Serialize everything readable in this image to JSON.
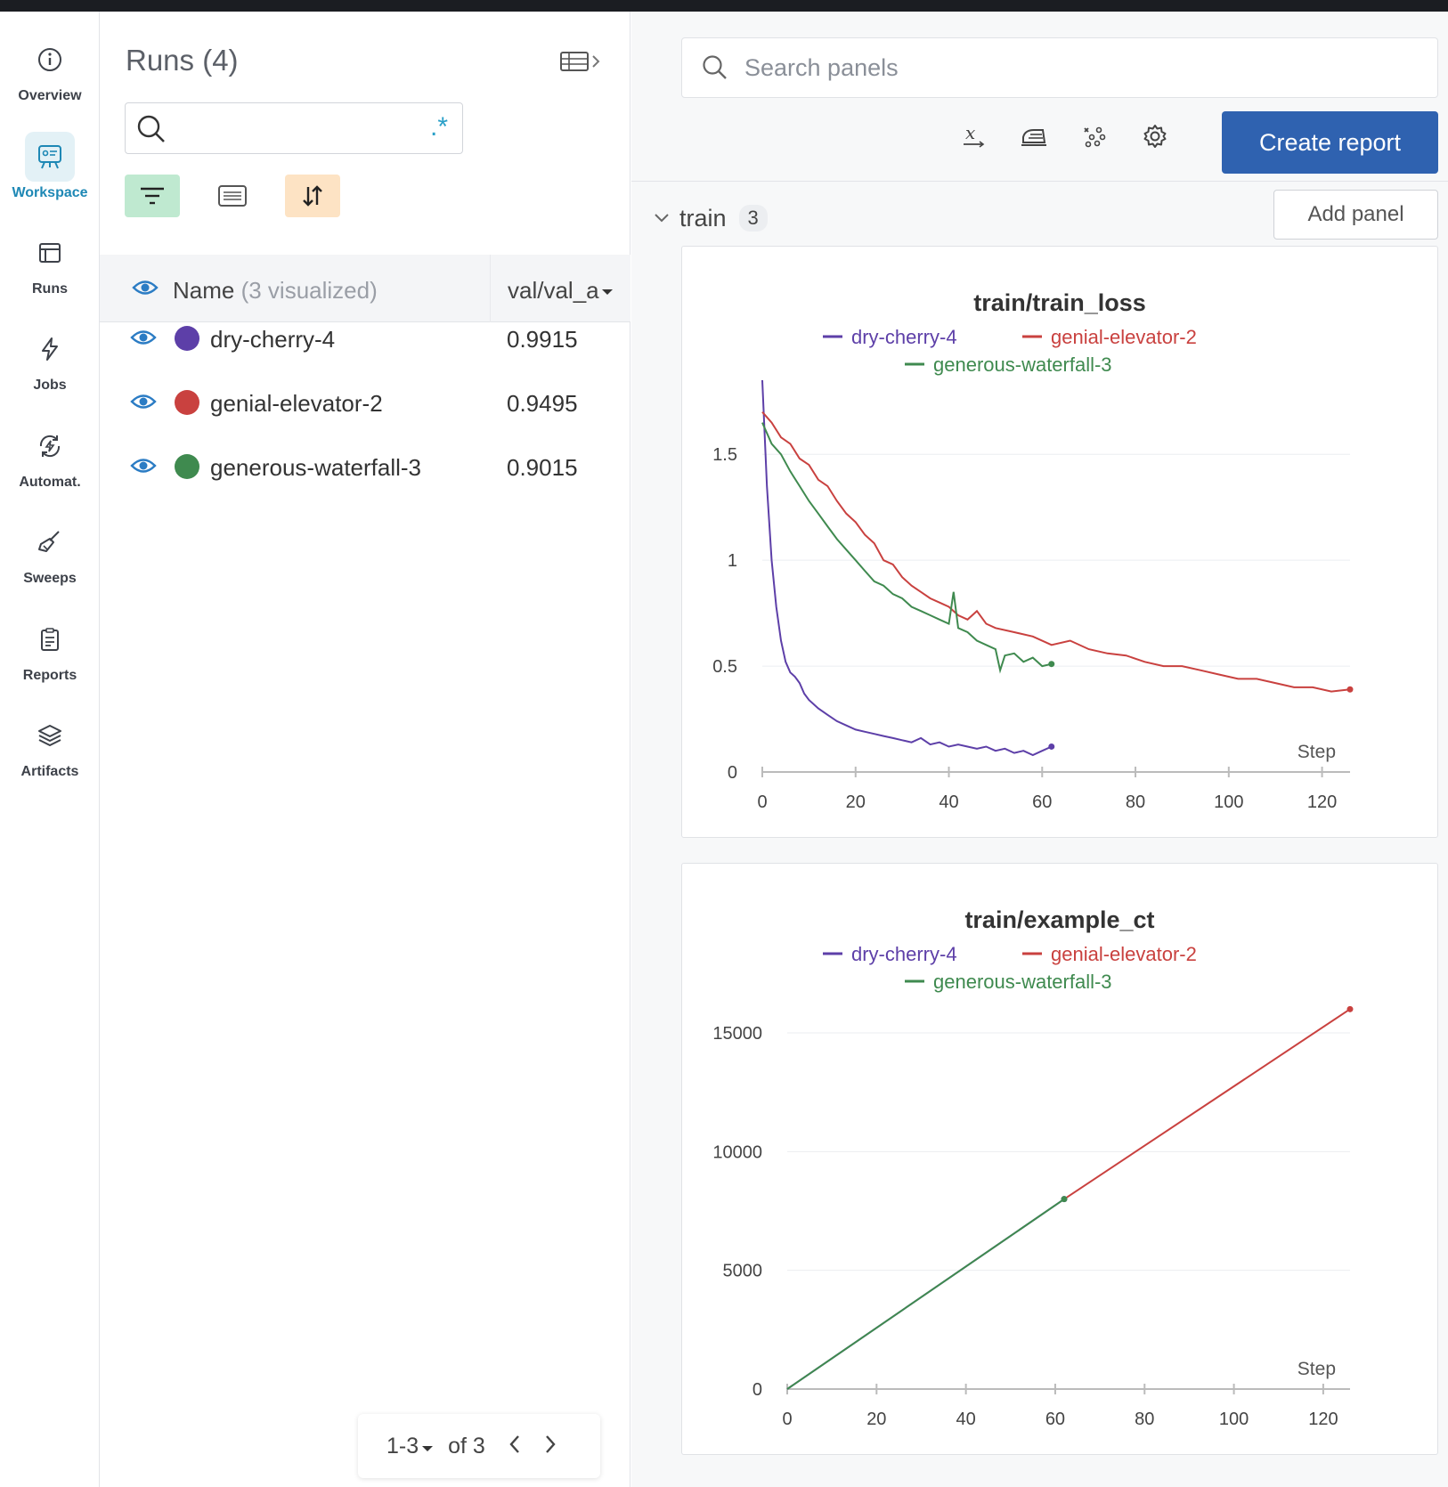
{
  "nav": {
    "items": [
      {
        "label": "Overview",
        "icon": "info-icon"
      },
      {
        "label": "Workspace",
        "icon": "workspace-icon",
        "active": true
      },
      {
        "label": "Runs",
        "icon": "table-icon"
      },
      {
        "label": "Jobs",
        "icon": "lightning-icon"
      },
      {
        "label": "Automat.",
        "icon": "automation-icon"
      },
      {
        "label": "Sweeps",
        "icon": "broom-icon"
      },
      {
        "label": "Reports",
        "icon": "report-icon"
      },
      {
        "label": "Artifacts",
        "icon": "layers-icon"
      }
    ]
  },
  "runs": {
    "title": "Runs (4)",
    "search": {
      "value": "",
      "placeholder": "",
      "regex_label": ".*"
    },
    "header": {
      "name": "Name",
      "visualized": "(3 visualized)",
      "column": "val/val_a"
    },
    "rows": [
      {
        "name": "dry-cherry-4",
        "value": "0.9915",
        "color": "#5d3fa8"
      },
      {
        "name": "genial-elevator-2",
        "value": "0.9495",
        "color": "#c9413f"
      },
      {
        "name": "generous-waterfall-3",
        "value": "0.9015",
        "color": "#3f8a4f"
      }
    ],
    "pager": {
      "range": "1-3",
      "of": "of 3"
    }
  },
  "main": {
    "search_placeholder": "Search panels",
    "create_report": "Create report",
    "section": {
      "title": "train",
      "count": "3"
    },
    "add_panel": "Add panel"
  },
  "chart_data": [
    {
      "type": "line",
      "title": "train/train_loss",
      "xlabel": "Step",
      "ylabel": "",
      "xlim": [
        0,
        126
      ],
      "ylim": [
        0,
        1.85
      ],
      "xticks": [
        0,
        20,
        40,
        60,
        80,
        100,
        120
      ],
      "yticks": [
        0,
        0.5,
        1,
        1.5
      ],
      "ytick_labels": [
        "0",
        "0.5",
        "1",
        "1.5"
      ],
      "grid": true,
      "legend": "top",
      "series": [
        {
          "name": "dry-cherry-4",
          "color": "#5d3fa8",
          "x": [
            0,
            1,
            2,
            3,
            4,
            5,
            6,
            7,
            8,
            9,
            10,
            12,
            14,
            16,
            18,
            20,
            22,
            24,
            26,
            28,
            30,
            32,
            34,
            36,
            38,
            40,
            42,
            44,
            46,
            48,
            50,
            52,
            54,
            56,
            58,
            60,
            62
          ],
          "y": [
            1.85,
            1.35,
            1.0,
            0.78,
            0.62,
            0.52,
            0.47,
            0.45,
            0.42,
            0.37,
            0.34,
            0.3,
            0.27,
            0.24,
            0.22,
            0.2,
            0.19,
            0.18,
            0.17,
            0.16,
            0.15,
            0.14,
            0.16,
            0.13,
            0.14,
            0.12,
            0.13,
            0.12,
            0.11,
            0.12,
            0.1,
            0.11,
            0.09,
            0.1,
            0.08,
            0.1,
            0.12
          ]
        },
        {
          "name": "genial-elevator-2",
          "color": "#c9413f",
          "x": [
            0,
            2,
            4,
            6,
            8,
            10,
            12,
            14,
            16,
            18,
            20,
            22,
            24,
            26,
            28,
            30,
            32,
            34,
            36,
            38,
            40,
            42,
            44,
            46,
            48,
            50,
            54,
            58,
            62,
            66,
            70,
            74,
            78,
            82,
            86,
            90,
            94,
            98,
            102,
            106,
            110,
            114,
            118,
            122,
            126
          ],
          "y": [
            1.7,
            1.65,
            1.58,
            1.55,
            1.48,
            1.45,
            1.38,
            1.35,
            1.28,
            1.22,
            1.18,
            1.12,
            1.08,
            1.0,
            0.98,
            0.92,
            0.88,
            0.85,
            0.82,
            0.8,
            0.78,
            0.74,
            0.72,
            0.76,
            0.7,
            0.68,
            0.66,
            0.64,
            0.6,
            0.62,
            0.58,
            0.56,
            0.55,
            0.52,
            0.5,
            0.5,
            0.48,
            0.46,
            0.44,
            0.44,
            0.42,
            0.4,
            0.4,
            0.38,
            0.39
          ]
        },
        {
          "name": "generous-waterfall-3",
          "color": "#3f8a4f",
          "x": [
            0,
            2,
            4,
            6,
            8,
            10,
            12,
            14,
            16,
            18,
            20,
            22,
            24,
            26,
            28,
            30,
            32,
            34,
            36,
            38,
            40,
            41,
            42,
            44,
            46,
            48,
            50,
            51,
            52,
            54,
            56,
            58,
            60,
            62
          ],
          "y": [
            1.65,
            1.55,
            1.5,
            1.42,
            1.35,
            1.28,
            1.22,
            1.16,
            1.1,
            1.05,
            1.0,
            0.95,
            0.9,
            0.88,
            0.84,
            0.82,
            0.78,
            0.76,
            0.74,
            0.72,
            0.7,
            0.85,
            0.68,
            0.66,
            0.62,
            0.6,
            0.58,
            0.48,
            0.55,
            0.56,
            0.52,
            0.54,
            0.5,
            0.51
          ]
        }
      ]
    },
    {
      "type": "line",
      "title": "train/example_ct",
      "xlabel": "Step",
      "ylabel": "",
      "xlim": [
        0,
        126
      ],
      "ylim": [
        0,
        16500
      ],
      "xticks": [
        0,
        20,
        40,
        60,
        80,
        100,
        120
      ],
      "yticks": [
        0,
        5000,
        10000,
        15000
      ],
      "ytick_labels": [
        "0",
        "5000",
        "10000",
        "15000"
      ],
      "grid": true,
      "legend": "top",
      "series": [
        {
          "name": "dry-cherry-4",
          "color": "#5d3fa8",
          "x": [
            0,
            62
          ],
          "y": [
            0,
            8000
          ]
        },
        {
          "name": "genial-elevator-2",
          "color": "#c9413f",
          "x": [
            62,
            126
          ],
          "y": [
            8000,
            16000
          ]
        },
        {
          "name": "generous-waterfall-3",
          "color": "#3f8a4f",
          "x": [
            0,
            62
          ],
          "y": [
            0,
            8000
          ]
        }
      ]
    }
  ]
}
